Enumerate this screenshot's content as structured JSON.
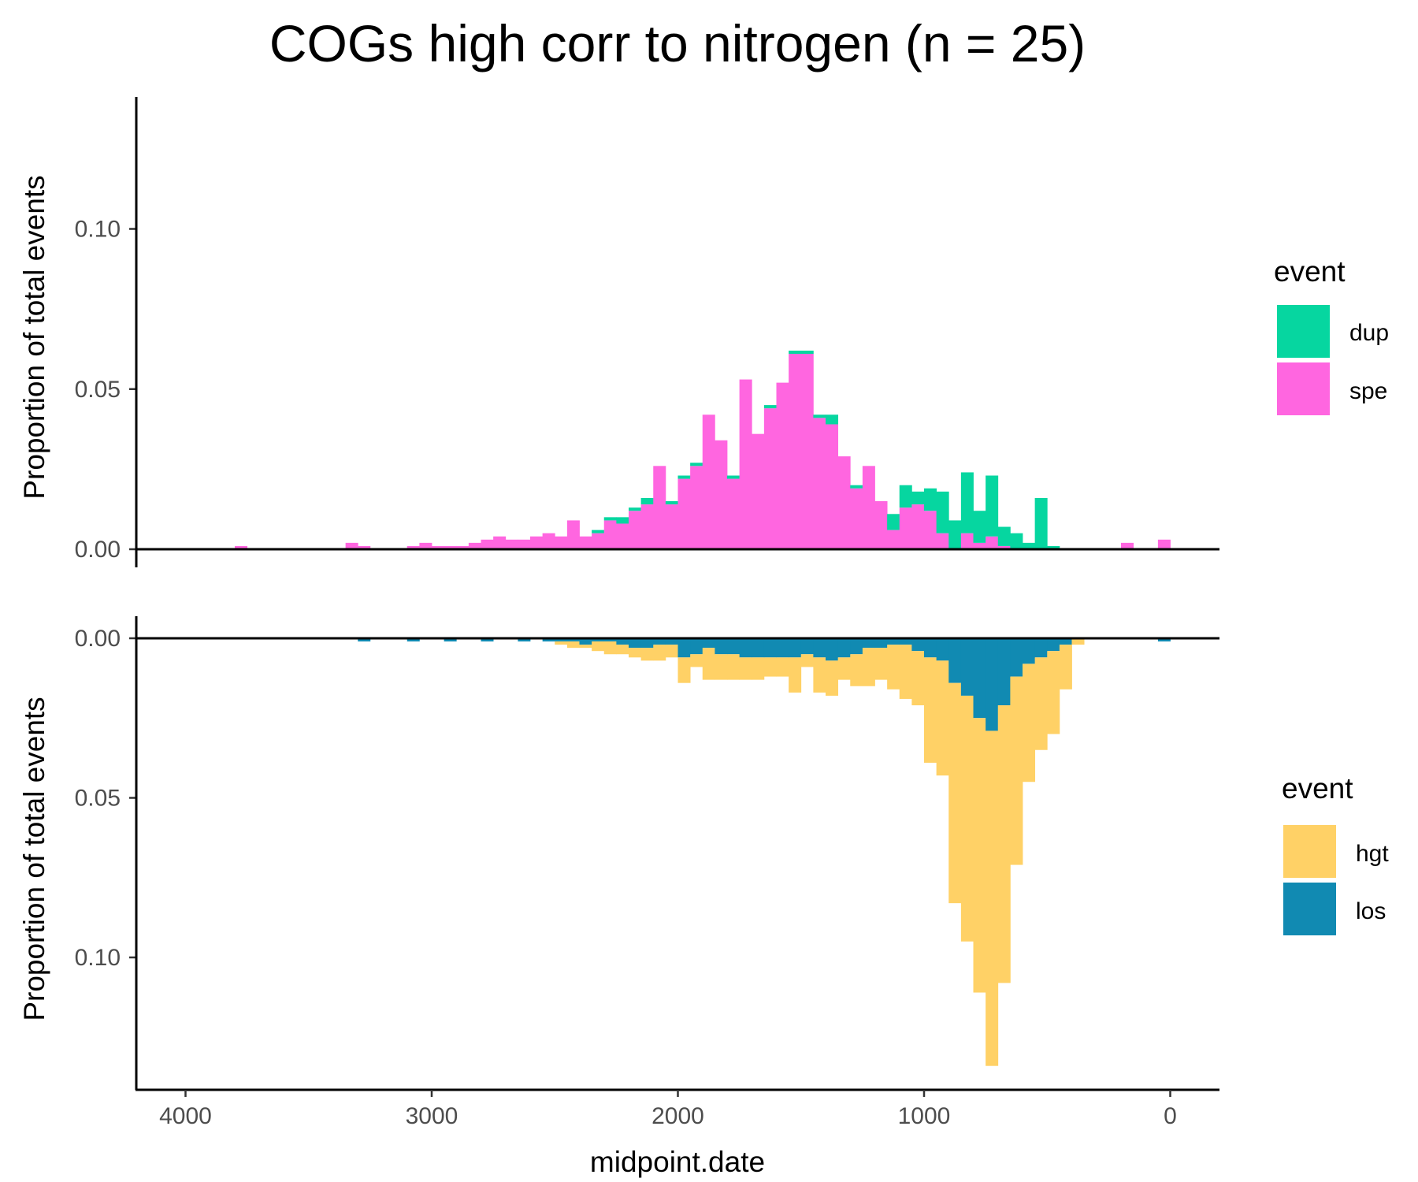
{
  "colors": {
    "dup": "#06D6A0",
    "spe": "#FF66E0",
    "hgt": "#FFD166",
    "los": "#118AB2"
  },
  "chart_data": {
    "type": "bar",
    "title": "COGs high corr to nitrogen (n = 25)",
    "xlabel": "midpoint.date",
    "x_reversed": true,
    "xlim": [
      4200,
      -200
    ],
    "x_ticks": [
      4000,
      3000,
      2000,
      1000,
      0
    ],
    "x_tick_labels": [
      "4000",
      "3000",
      "2000",
      "1000",
      "0"
    ],
    "bin_width": 50,
    "panels": [
      {
        "ylabel": "Proportion of total events",
        "ylim": [
          0,
          0.14
        ],
        "direction": "up",
        "y_ticks": [
          0,
          0.05,
          0.1
        ],
        "y_tick_labels": [
          "0.00",
          "0.05",
          "0.10"
        ],
        "legend_title": "event",
        "legend": [
          "dup",
          "spe"
        ],
        "x": [
          3775,
          3325,
          3275,
          3075,
          3025,
          2975,
          2925,
          2875,
          2825,
          2775,
          2725,
          2675,
          2625,
          2575,
          2525,
          2475,
          2425,
          2375,
          2325,
          2275,
          2225,
          2175,
          2125,
          2075,
          2025,
          1975,
          1925,
          1875,
          1825,
          1775,
          1725,
          1675,
          1625,
          1575,
          1525,
          1475,
          1425,
          1375,
          1325,
          1275,
          1225,
          1175,
          1125,
          1075,
          1025,
          975,
          925,
          875,
          825,
          775,
          725,
          675,
          625,
          575,
          525,
          475,
          425,
          175,
          25
        ],
        "series": [
          {
            "name": "spe",
            "values": [
              0.001,
              0.002,
              0.001,
              0.001,
              0.002,
              0.001,
              0.001,
              0.001,
              0.002,
              0.003,
              0.004,
              0.003,
              0.003,
              0.004,
              0.005,
              0.004,
              0.009,
              0.004,
              0.005,
              0.009,
              0.008,
              0.012,
              0.014,
              0.026,
              0.014,
              0.022,
              0.026,
              0.042,
              0.034,
              0.022,
              0.053,
              0.036,
              0.044,
              0.052,
              0.061,
              0.061,
              0.041,
              0.039,
              0.029,
              0.019,
              0.026,
              0.015,
              0.006,
              0.013,
              0.014,
              0.012,
              0.005,
              0,
              0.005,
              0.002,
              0.004,
              0.001,
              0,
              0,
              0,
              0,
              0,
              0.002,
              0.003
            ]
          },
          {
            "name": "dup",
            "values": [
              0,
              0,
              0,
              0,
              0,
              0,
              0,
              0,
              0,
              0,
              0,
              0,
              0,
              0,
              0,
              0,
              0,
              0,
              0.001,
              0.001,
              0.002,
              0.001,
              0.002,
              0,
              0.001,
              0.001,
              0.001,
              0,
              0,
              0.001,
              0,
              0,
              0.001,
              0,
              0.001,
              0.001,
              0.001,
              0.003,
              0,
              0.001,
              0,
              0,
              0.005,
              0.007,
              0.004,
              0.007,
              0.013,
              0.009,
              0.019,
              0.01,
              0.019,
              0.006,
              0.005,
              0.002,
              0.016,
              0.001,
              0,
              0,
              0
            ]
          }
        ]
      },
      {
        "ylabel": "Proportion of total events",
        "ylim": [
          0,
          0.135
        ],
        "direction": "down",
        "y_ticks": [
          0,
          0.05,
          0.1
        ],
        "y_tick_labels": [
          "0.00",
          "0.05",
          "0.10"
        ],
        "legend_title": "event",
        "legend": [
          "hgt",
          "los"
        ],
        "x": [
          3275,
          3075,
          2925,
          2775,
          2625,
          2525,
          2475,
          2425,
          2375,
          2325,
          2275,
          2225,
          2175,
          2125,
          2075,
          2025,
          1975,
          1925,
          1875,
          1825,
          1775,
          1725,
          1675,
          1625,
          1575,
          1525,
          1475,
          1425,
          1375,
          1325,
          1275,
          1225,
          1175,
          1125,
          1075,
          1025,
          975,
          925,
          875,
          825,
          775,
          725,
          675,
          625,
          575,
          525,
          475,
          425,
          375,
          25
        ],
        "series": [
          {
            "name": "los",
            "values": [
              0.001,
              0.001,
              0.001,
              0.001,
              0.001,
              0.001,
              0.001,
              0.001,
              0.002,
              0.001,
              0.001,
              0.002,
              0.003,
              0.003,
              0.002,
              0.002,
              0.006,
              0.005,
              0.003,
              0.005,
              0.005,
              0.006,
              0.006,
              0.006,
              0.006,
              0.006,
              0.005,
              0.006,
              0.007,
              0.006,
              0.005,
              0.003,
              0.003,
              0.002,
              0.002,
              0.004,
              0.006,
              0.007,
              0.014,
              0.018,
              0.025,
              0.029,
              0.021,
              0.012,
              0.008,
              0.006,
              0.004,
              0.002,
              0,
              0.001
            ]
          },
          {
            "name": "hgt",
            "values": [
              0,
              0,
              0,
              0,
              0,
              0,
              0.001,
              0.002,
              0.001,
              0.003,
              0.004,
              0.003,
              0.003,
              0.004,
              0.005,
              0.004,
              0.008,
              0.004,
              0.01,
              0.008,
              0.008,
              0.007,
              0.007,
              0.006,
              0.006,
              0.011,
              0.004,
              0.011,
              0.011,
              0.007,
              0.01,
              0.012,
              0.01,
              0.014,
              0.017,
              0.017,
              0.033,
              0.036,
              0.069,
              0.077,
              0.086,
              0.105,
              0.087,
              0.059,
              0.037,
              0.029,
              0.026,
              0.014,
              0.002,
              0
            ]
          }
        ]
      }
    ]
  }
}
